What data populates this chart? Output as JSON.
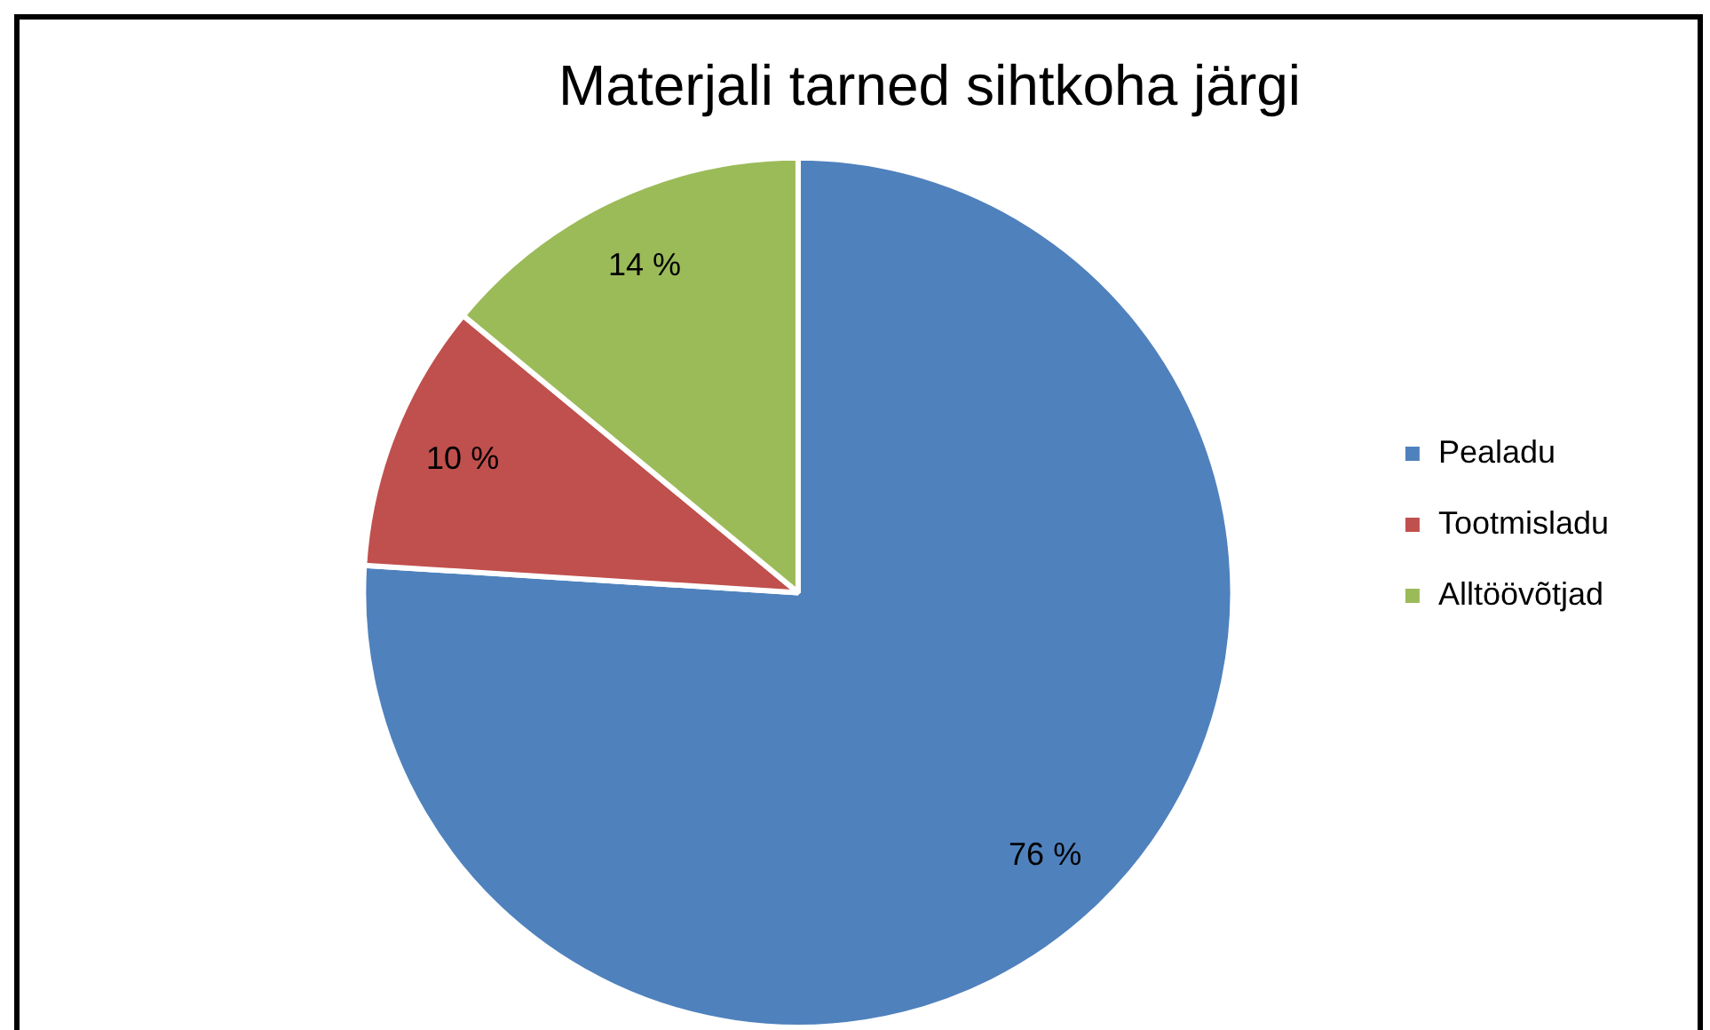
{
  "chart_data": {
    "type": "pie",
    "title": "Materjali tarned sihtkoha järgi",
    "categories": [
      "Pealadu",
      "Tootmisladu",
      "Alltöövõtjad"
    ],
    "values": [
      76,
      10,
      14
    ],
    "colors": [
      "#4f81bd",
      "#c0504d",
      "#9bbb59"
    ],
    "value_labels": [
      "76 %",
      "10 %",
      "14 %"
    ],
    "legend": "right"
  }
}
